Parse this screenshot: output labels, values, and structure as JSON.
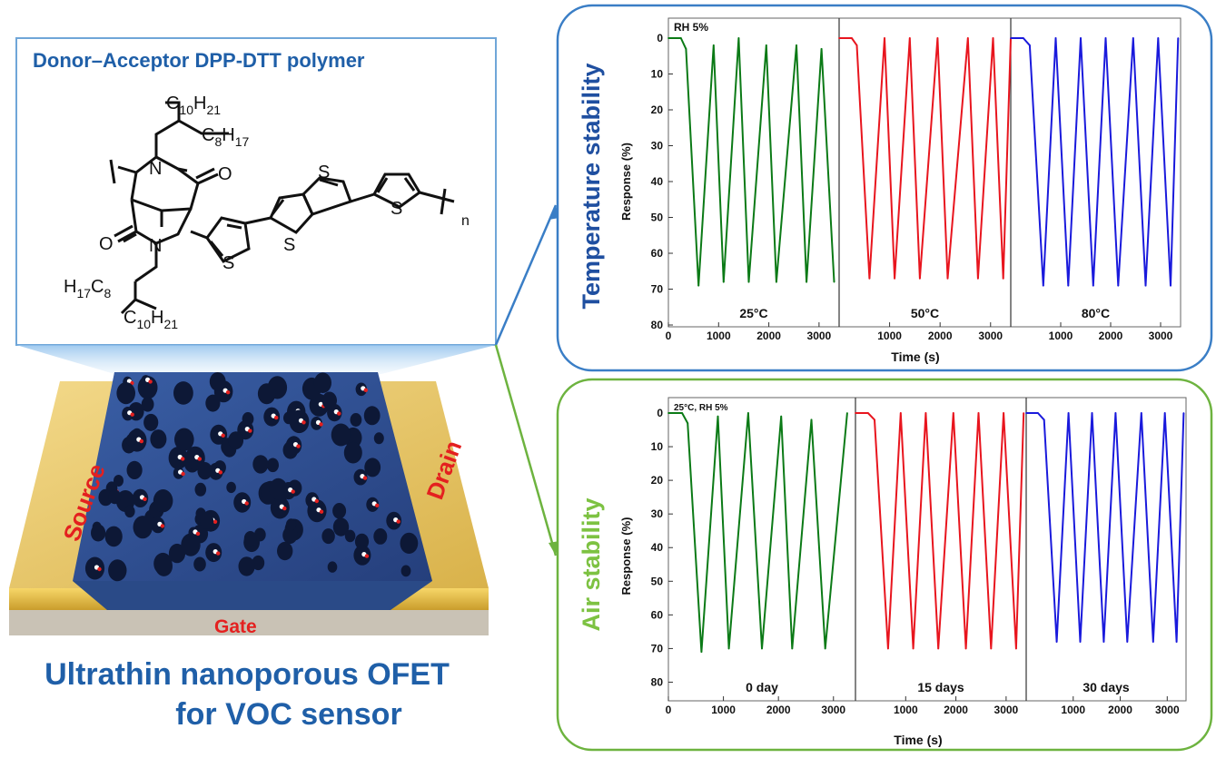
{
  "molecule": {
    "title": "Donor–Acceptor DPP-DTT polymer",
    "chain1_c": "C",
    "chain1_c_sub": "10",
    "chain1_h": "H",
    "chain1_h_sub": "21",
    "chain2_c": "C",
    "chain2_c_sub": "8",
    "chain2_h": "H",
    "chain2_h_sub": "17",
    "chain3_h": "H",
    "chain3_h_sub": "17",
    "chain3_c": "C",
    "chain3_c_sub": "8",
    "chain4_c": "C",
    "chain4_c_sub": "10",
    "chain4_h": "H",
    "chain4_h_sub": "21",
    "atom_n": "N",
    "atom_o": "O",
    "atom_s": "S",
    "repeat_n": "n"
  },
  "device": {
    "source_label": "Source",
    "drain_label": "Drain",
    "gate_label": "Gate",
    "caption_line1": "Ultrathin nanoporous OFET",
    "caption_line2": "for VOC sensor"
  },
  "colors": {
    "frame_blue": "#3a7ec6",
    "frame_green": "#6db33f",
    "title_blue": "#1f5fa8",
    "label_temp": "#1f4fa0",
    "label_air": "#7dc242",
    "film": "#2c4a86",
    "gold": "#e8c25c",
    "series_green": "#0b7a16",
    "series_red": "#e8151e",
    "series_blue": "#1a1adc"
  },
  "chart_data": [
    {
      "type": "line",
      "side_label": "Temperature stability",
      "corner_note": "RH 5%",
      "ylabel": "Response (%)",
      "xlabel": "Time (s)",
      "y_ticks": [
        "0",
        "10",
        "20",
        "30",
        "40",
        "50",
        "60",
        "70",
        "80"
      ],
      "ylim": [
        80,
        0
      ],
      "panels": [
        {
          "name": "25°C",
          "color": "series_green",
          "x_ticks": [
            "0",
            "1000",
            "2000",
            "3000"
          ],
          "xlim": [
            0,
            3400
          ],
          "x": [
            0,
            250,
            350,
            600,
            900,
            1100,
            1400,
            1600,
            1950,
            2150,
            2550,
            2750,
            3050,
            3300
          ],
          "y": [
            0,
            0,
            3,
            69,
            2,
            68,
            0,
            68,
            2,
            68,
            2,
            68,
            3,
            68
          ]
        },
        {
          "name": "50°C",
          "color": "series_red",
          "x_ticks": [
            "1000",
            "2000",
            "3000"
          ],
          "xlim": [
            0,
            3400
          ],
          "x": [
            0,
            250,
            350,
            600,
            900,
            1100,
            1400,
            1600,
            1950,
            2150,
            2550,
            2750,
            3050,
            3250,
            3400
          ],
          "y": [
            0,
            0,
            2,
            67,
            0,
            67,
            0,
            67,
            0,
            67,
            0,
            67,
            0,
            67,
            0
          ]
        },
        {
          "name": "80°C",
          "color": "series_blue",
          "x_ticks": [
            "1000",
            "2000",
            "3000"
          ],
          "xlim": [
            0,
            3400
          ],
          "x": [
            0,
            250,
            380,
            650,
            900,
            1150,
            1400,
            1650,
            1900,
            2150,
            2450,
            2700,
            2950,
            3200,
            3350
          ],
          "y": [
            0,
            0,
            2,
            69,
            0,
            69,
            0,
            69,
            0,
            69,
            0,
            69,
            0,
            69,
            0
          ]
        }
      ]
    },
    {
      "type": "line",
      "side_label": "Air stability",
      "corner_note": "25°C, RH 5%",
      "ylabel": "Response (%)",
      "xlabel": "Time (s)",
      "y_ticks": [
        "0",
        "10",
        "20",
        "30",
        "40",
        "50",
        "60",
        "70",
        "80"
      ],
      "ylim": [
        85,
        0
      ],
      "panels": [
        {
          "name": "0 day",
          "color": "series_green",
          "x_ticks": [
            "0",
            "1000",
            "2000",
            "3000"
          ],
          "xlim": [
            0,
            3400
          ],
          "x": [
            0,
            250,
            350,
            600,
            900,
            1100,
            1450,
            1700,
            2050,
            2250,
            2600,
            2850,
            3250
          ],
          "y": [
            0,
            0,
            3,
            71,
            1,
            70,
            0,
            70,
            1,
            70,
            2,
            70,
            0
          ]
        },
        {
          "name": "15 days",
          "color": "series_red",
          "x_ticks": [
            "1000",
            "2000",
            "3000"
          ],
          "xlim": [
            0,
            3400
          ],
          "x": [
            0,
            250,
            380,
            650,
            900,
            1150,
            1400,
            1650,
            1950,
            2200,
            2450,
            2700,
            2950,
            3200,
            3350
          ],
          "y": [
            0,
            0,
            2,
            70,
            0,
            70,
            0,
            70,
            0,
            70,
            0,
            70,
            0,
            70,
            0
          ]
        },
        {
          "name": "30 days",
          "color": "series_blue",
          "x_ticks": [
            "1000",
            "2000",
            "3000"
          ],
          "xlim": [
            0,
            3400
          ],
          "x": [
            0,
            250,
            380,
            650,
            900,
            1150,
            1400,
            1650,
            1900,
            2150,
            2450,
            2700,
            2950,
            3200,
            3350
          ],
          "y": [
            0,
            0,
            2,
            68,
            0,
            68,
            0,
            68,
            0,
            68,
            0,
            68,
            0,
            68,
            0
          ]
        }
      ]
    }
  ]
}
